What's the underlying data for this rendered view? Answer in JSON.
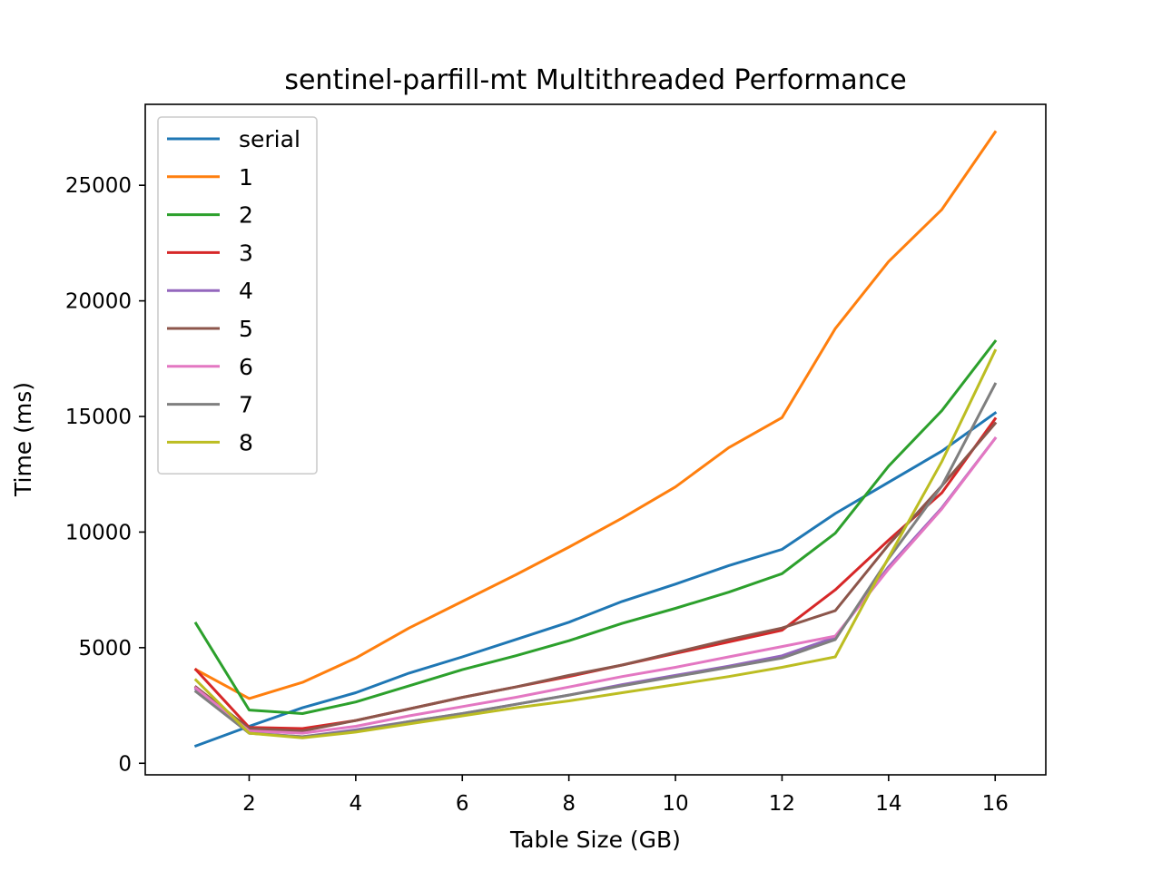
{
  "chart_data": {
    "type": "line",
    "title": "sentinel-parfill-mt Multithreaded Performance",
    "xlabel": "Table Size (GB)",
    "ylabel": "Time (ms)",
    "xlim": [
      0.05,
      16.95
    ],
    "ylim": [
      -500,
      28500
    ],
    "xticks": [
      2,
      4,
      6,
      8,
      10,
      12,
      14,
      16
    ],
    "yticks": [
      0,
      5000,
      10000,
      15000,
      20000,
      25000
    ],
    "grid": false,
    "legend_position": "upper left",
    "x": [
      1,
      2,
      3,
      4,
      5,
      6,
      7,
      8,
      9,
      10,
      11,
      12,
      13,
      14,
      15,
      16
    ],
    "series": [
      {
        "name": "serial",
        "color": "#1f77b4",
        "values": [
          750,
          1600,
          2400,
          3050,
          3900,
          4600,
          5350,
          6100,
          7000,
          7750,
          8550,
          9250,
          10800,
          12150,
          13500,
          15150
        ]
      },
      {
        "name": "1",
        "color": "#ff7f0e",
        "values": [
          4050,
          2800,
          3500,
          4550,
          5850,
          7000,
          8150,
          9350,
          10600,
          11950,
          13650,
          14950,
          18800,
          21700,
          23950,
          27300
        ]
      },
      {
        "name": "2",
        "color": "#2ca02c",
        "values": [
          6050,
          2300,
          2150,
          2650,
          3350,
          4050,
          4650,
          5300,
          6050,
          6700,
          7400,
          8200,
          9950,
          12850,
          15250,
          18250
        ]
      },
      {
        "name": "3",
        "color": "#d62728",
        "values": [
          4050,
          1550,
          1500,
          1850,
          2350,
          2850,
          3300,
          3750,
          4250,
          4750,
          5250,
          5750,
          7500,
          9650,
          11700,
          14900
        ]
      },
      {
        "name": "4",
        "color": "#9467bd",
        "values": [
          3200,
          1300,
          1150,
          1450,
          1800,
          2150,
          2550,
          2950,
          3400,
          3800,
          4200,
          4650,
          5450,
          8500,
          11050,
          14050
        ]
      },
      {
        "name": "5",
        "color": "#8c564b",
        "values": [
          3300,
          1500,
          1400,
          1850,
          2350,
          2850,
          3300,
          3800,
          4250,
          4800,
          5350,
          5850,
          6600,
          9450,
          12000,
          14700
        ]
      },
      {
        "name": "6",
        "color": "#e377c2",
        "values": [
          3250,
          1400,
          1300,
          1600,
          2050,
          2450,
          2850,
          3300,
          3750,
          4150,
          4600,
          5050,
          5500,
          8400,
          11000,
          14050
        ]
      },
      {
        "name": "7",
        "color": "#7f7f7f",
        "values": [
          3100,
          1300,
          1150,
          1400,
          1800,
          2150,
          2550,
          2950,
          3350,
          3750,
          4150,
          4550,
          5350,
          8850,
          12000,
          16400
        ]
      },
      {
        "name": "8",
        "color": "#bcbd22",
        "values": [
          3600,
          1300,
          1100,
          1350,
          1700,
          2050,
          2400,
          2700,
          3050,
          3400,
          3750,
          4150,
          4600,
          8900,
          13050,
          17850
        ]
      }
    ]
  }
}
